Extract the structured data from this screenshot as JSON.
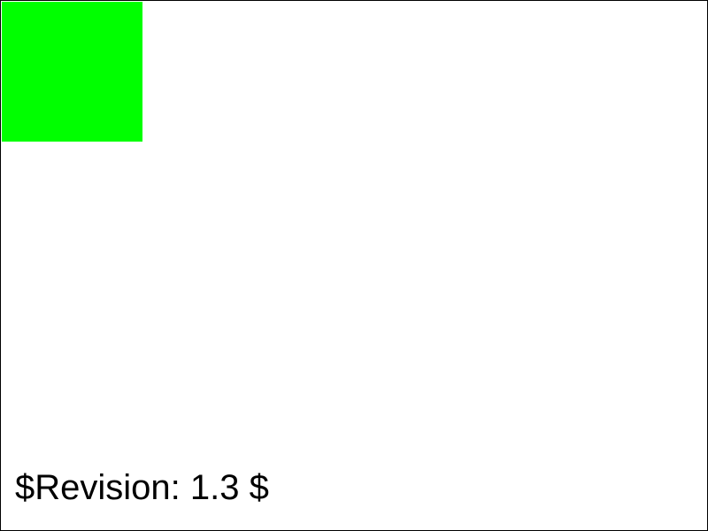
{
  "revision_text": "$Revision: 1.3 $",
  "colors": {
    "square": "#00ff00",
    "border": "#000000",
    "background": "#ffffff",
    "text": "#000000"
  }
}
